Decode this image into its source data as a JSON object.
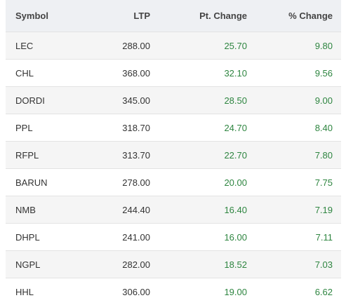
{
  "table": {
    "header": [
      "Symbol",
      "LTP",
      "Pt. Change",
      "% Change"
    ],
    "rows": [
      [
        "LEC",
        "288.00",
        "25.70",
        "9.80"
      ],
      [
        "CHL",
        "368.00",
        "32.10",
        "9.56"
      ],
      [
        "DORDI",
        "345.00",
        "28.50",
        "9.00"
      ],
      [
        "PPL",
        "318.70",
        "24.70",
        "8.40"
      ],
      [
        "RFPL",
        "313.70",
        "22.70",
        "7.80"
      ],
      [
        "BARUN",
        "278.00",
        "20.00",
        "7.75"
      ],
      [
        "NMB",
        "244.40",
        "16.40",
        "7.19"
      ],
      [
        "DHPL",
        "241.00",
        "16.00",
        "7.11"
      ],
      [
        "NGPL",
        "282.00",
        "18.52",
        "7.03"
      ],
      [
        "HHL",
        "306.00",
        "19.00",
        "6.62"
      ]
    ]
  }
}
